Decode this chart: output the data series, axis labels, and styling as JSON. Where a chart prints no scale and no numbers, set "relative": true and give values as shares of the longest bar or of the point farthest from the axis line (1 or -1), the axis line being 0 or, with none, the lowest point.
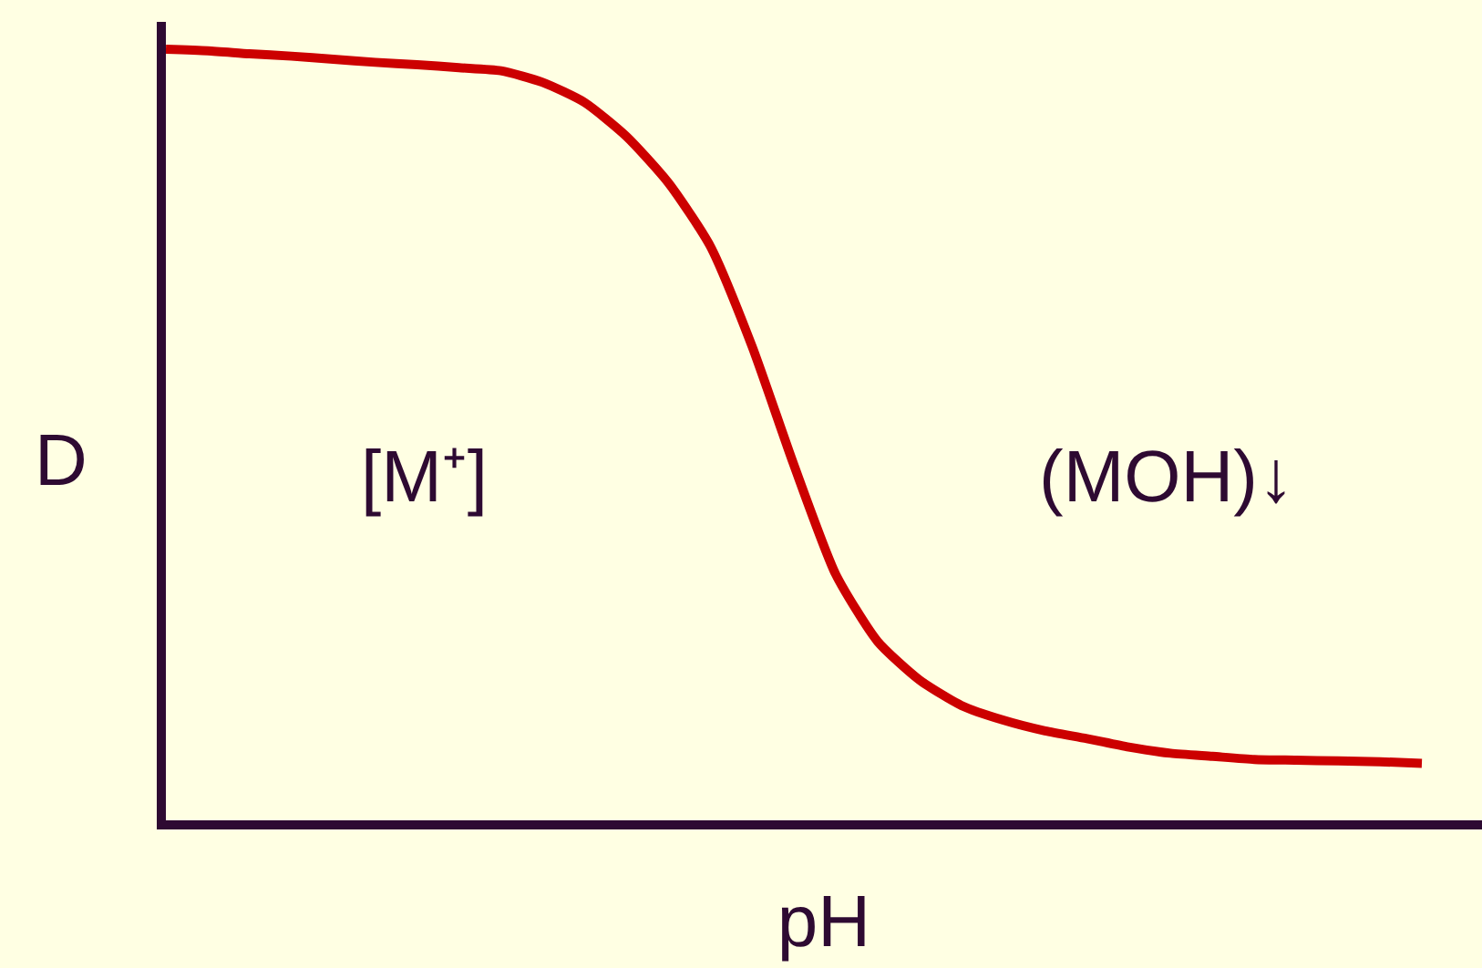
{
  "chart_data": {
    "type": "line",
    "relative": true,
    "xlabel": "pH",
    "ylabel": "D",
    "annotations": [
      "[M⁺]",
      "(MOH)↓"
    ],
    "categories": [
      null,
      null,
      null,
      null,
      null,
      null,
      null,
      null,
      null,
      null,
      null,
      null,
      null,
      null,
      null,
      null,
      null,
      null,
      null,
      null,
      null,
      null,
      null,
      null,
      null,
      null,
      null,
      null,
      null,
      null,
      null
    ],
    "series": [
      {
        "color": "#cc0000",
        "values": [
          1.0,
          0.998,
          0.994,
          0.991,
          0.987,
          0.983,
          0.98,
          0.976,
          0.972,
          0.957,
          0.931,
          0.887,
          0.827,
          0.745,
          0.615,
          0.461,
          0.319,
          0.232,
          0.182,
          0.149,
          0.13,
          0.116,
          0.106,
          0.095,
          0.087,
          0.083,
          0.079,
          0.078,
          0.077,
          0.076,
          0.074
        ]
      }
    ],
    "marker": "none",
    "line_style": "solid"
  }
}
